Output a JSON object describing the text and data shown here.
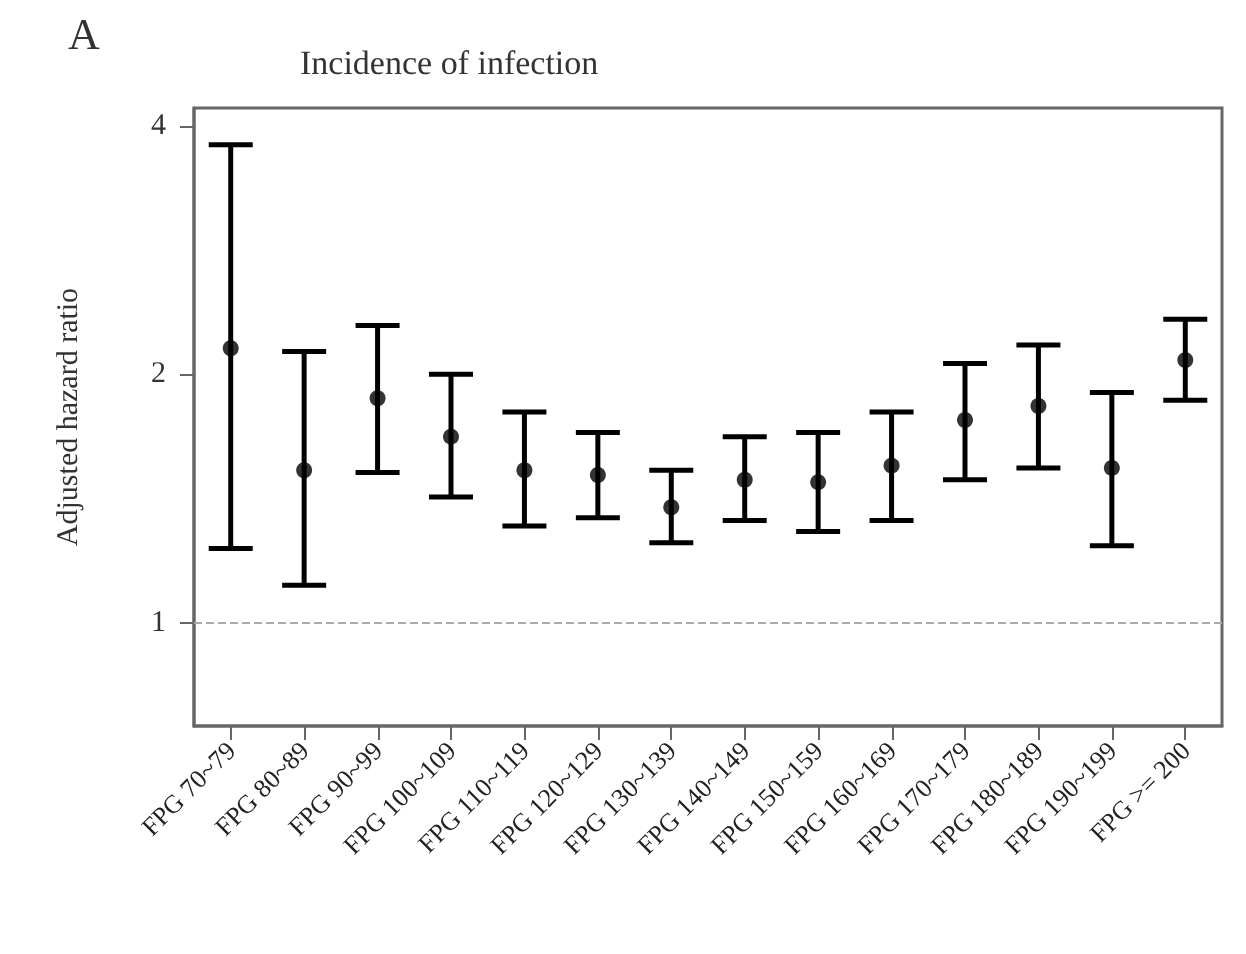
{
  "chart_data": {
    "type": "scatter",
    "title": "Incidence of infection",
    "ylabel": "Adjusted hazard ratio",
    "annotations": [
      "A"
    ],
    "categories": [
      "FPG 70~79",
      "FPG 80~89",
      "FPG 90~99",
      "FPG 100~109",
      "FPG 110~119",
      "FPG 120~129",
      "FPG 130~139",
      "FPG 140~149",
      "FPG 150~159",
      "FPG 160~169",
      "FPG 170~179",
      "FPG 180~189",
      "FPG 190~199",
      "FPG >= 200"
    ],
    "series": [
      {
        "color": "#000000",
        "values": [
          2.15,
          1.53,
          1.87,
          1.68,
          1.53,
          1.51,
          1.38,
          1.49,
          1.48,
          1.55,
          1.76,
          1.83,
          1.54,
          2.08
        ],
        "errors": [
          [
            1.23,
            3.79
          ],
          [
            1.11,
            2.13
          ],
          [
            1.52,
            2.29
          ],
          [
            1.42,
            2.0
          ],
          [
            1.31,
            1.8
          ],
          [
            1.34,
            1.7
          ],
          [
            1.25,
            1.53
          ],
          [
            1.33,
            1.68
          ],
          [
            1.29,
            1.7
          ],
          [
            1.33,
            1.8
          ],
          [
            1.49,
            2.06
          ],
          [
            1.54,
            2.17
          ],
          [
            1.24,
            1.9
          ],
          [
            1.86,
            2.33
          ]
        ]
      }
    ],
    "ylim": [
      0.75,
      4.2
    ],
    "yticks": [
      1,
      2,
      4
    ],
    "log": "y",
    "grid": false,
    "marker": "circle",
    "ref_lines": [
      {
        "axis": "y",
        "value": 1,
        "color": "#aaaaaa",
        "line_style": "dashed"
      }
    ]
  }
}
